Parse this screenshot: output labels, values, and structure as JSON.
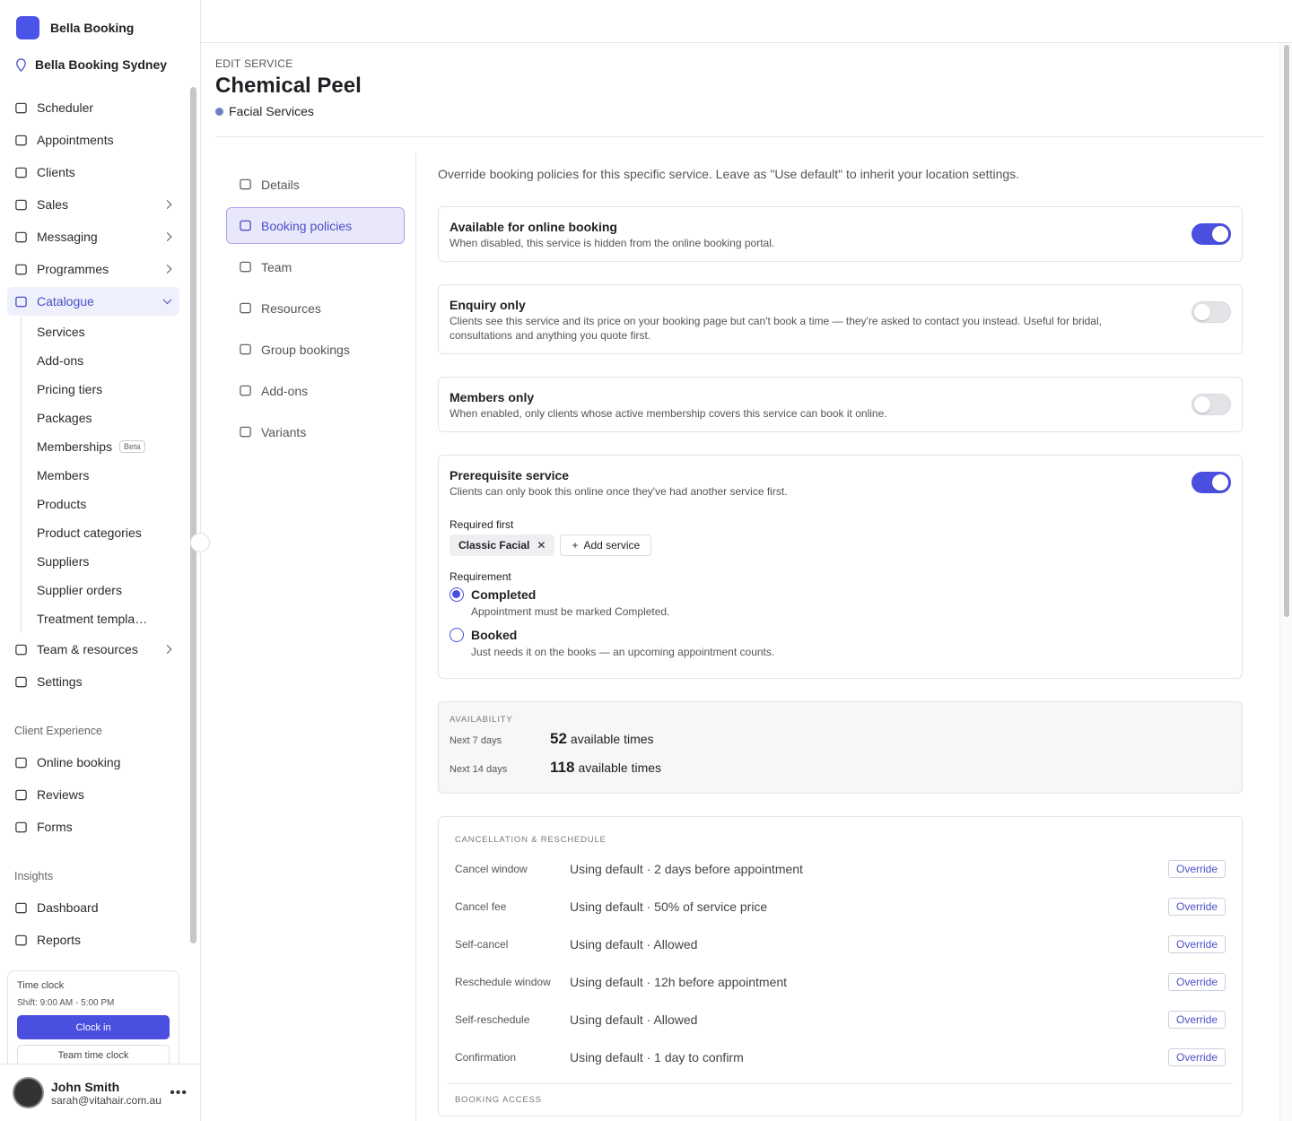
{
  "sidebar": {
    "brand": "Bella Booking",
    "location": "Bella Booking Sydney",
    "nav": [
      {
        "label": "Scheduler"
      },
      {
        "label": "Appointments"
      },
      {
        "label": "Clients"
      },
      {
        "label": "Sales",
        "expandable": true
      },
      {
        "label": "Messaging",
        "expandable": true
      },
      {
        "label": "Programmes",
        "expandable": true
      },
      {
        "label": "Catalogue",
        "expandable": true,
        "expanded": true,
        "active": true,
        "children": [
          {
            "label": "Services"
          },
          {
            "label": "Add-ons"
          },
          {
            "label": "Pricing tiers"
          },
          {
            "label": "Packages"
          },
          {
            "label": "Memberships",
            "badge": "Beta"
          },
          {
            "label": "Members"
          },
          {
            "label": "Products"
          },
          {
            "label": "Product categories"
          },
          {
            "label": "Suppliers"
          },
          {
            "label": "Supplier orders"
          },
          {
            "label": "Treatment templa…"
          }
        ]
      },
      {
        "label": "Team & resources",
        "expandable": true
      },
      {
        "label": "Settings"
      }
    ],
    "sections": [
      {
        "title": "Client Experience",
        "items": [
          {
            "label": "Online booking"
          },
          {
            "label": "Reviews"
          },
          {
            "label": "Forms"
          }
        ]
      },
      {
        "title": "Insights",
        "items": [
          {
            "label": "Dashboard"
          },
          {
            "label": "Reports"
          }
        ]
      }
    ],
    "time_clock": {
      "title": "Time clock",
      "shift": "Shift: 9:00 AM - 5:00 PM",
      "clock_in": "Clock in",
      "team": "Team time clock"
    },
    "user": {
      "name": "John Smith",
      "email": "sarah@vitahair.com.au"
    }
  },
  "header": {
    "eyebrow": "EDIT SERVICE",
    "title": "Chemical Peel",
    "category": "Facial Services"
  },
  "tabs": [
    {
      "label": "Details"
    },
    {
      "label": "Booking policies",
      "active": true
    },
    {
      "label": "Team"
    },
    {
      "label": "Resources"
    },
    {
      "label": "Group bookings"
    },
    {
      "label": "Add-ons"
    },
    {
      "label": "Variants"
    }
  ],
  "intro": "Override booking policies for this specific service. Leave as \"Use default\" to inherit your location settings.",
  "policies": [
    {
      "title": "Available for online booking",
      "description": "When disabled, this service is hidden from the online booking portal.",
      "enabled": true
    },
    {
      "title": "Enquiry only",
      "description": "Clients see this service and its price on your booking page but can't book a time — they're asked to contact you instead. Useful for bridal, consultations and anything you quote first.",
      "enabled": false
    },
    {
      "title": "Members only",
      "description": "When enabled, only clients whose active membership covers this service can book it online.",
      "enabled": false
    },
    {
      "title": "Prerequisite service",
      "description": "Clients can only book this online once they've had another service first.",
      "enabled": true,
      "required_label": "Required first",
      "required": [
        "Classic Facial"
      ],
      "add_button": "Add service",
      "requirement_label": "Requirement",
      "options": [
        {
          "label": "Completed",
          "description": "Appointment must be marked Completed.",
          "selected": true
        },
        {
          "label": "Booked",
          "description": "Just needs it on the books — an upcoming appointment counts.",
          "selected": false
        }
      ]
    }
  ],
  "availability": {
    "title": "AVAILABILITY",
    "rows": [
      {
        "label": "Next 7 days",
        "count": "52",
        "unit": "available times"
      },
      {
        "label": "Next 14 days",
        "count": "118",
        "unit": "available times"
      }
    ]
  },
  "cancellation": {
    "title": "CANCELLATION & RESCHEDULE",
    "button": "Override",
    "rows": [
      {
        "label": "Cancel window",
        "value": "Using default · 2 days before appointment"
      },
      {
        "label": "Cancel fee",
        "value": "Using default · 50% of service price"
      },
      {
        "label": "Self-cancel",
        "value": "Using default · Allowed"
      },
      {
        "label": "Reschedule window",
        "value": "Using default · 12h before appointment"
      },
      {
        "label": "Self-reschedule",
        "value": "Using default · Allowed"
      },
      {
        "label": "Confirmation",
        "value": "Using default · 1 day to confirm"
      }
    ],
    "next_section": "BOOKING ACCESS"
  }
}
